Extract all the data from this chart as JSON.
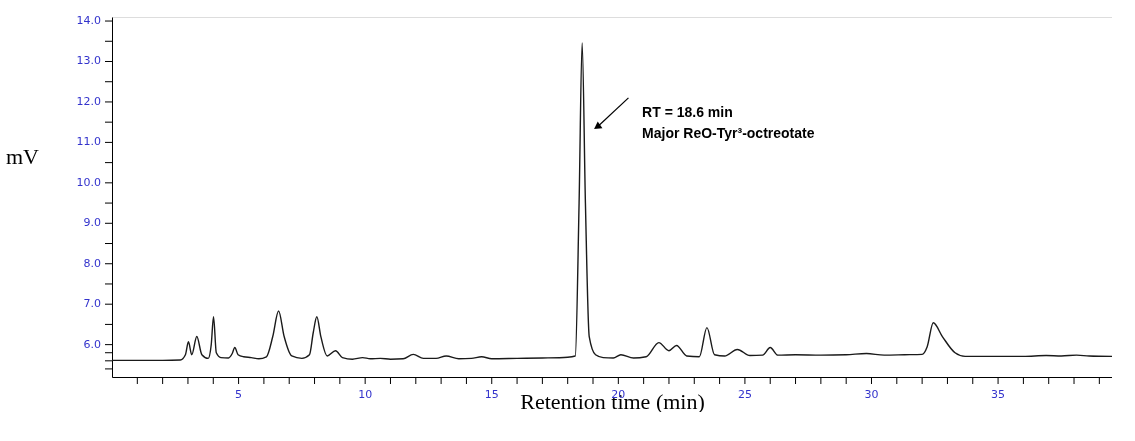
{
  "chart_data": {
    "type": "line",
    "xlabel": "Retention time (min)",
    "ylabel": "mV",
    "annotations": [
      {
        "text": "RT = 18.6 min\nMajor ReO-Tyr³-octreotate",
        "x": 19.2,
        "y": 11.4
      }
    ],
    "series": [
      {
        "color": "#1a1a1a",
        "x": [
          0.0,
          1.0,
          2.0,
          2.7,
          2.9,
          3.02,
          3.15,
          3.35,
          3.55,
          3.8,
          3.92,
          4.01,
          4.12,
          4.3,
          4.6,
          4.75,
          4.85,
          4.98,
          5.2,
          5.5,
          5.8,
          6.1,
          6.35,
          6.58,
          6.8,
          7.1,
          7.5,
          7.8,
          7.95,
          8.09,
          8.25,
          8.5,
          8.83,
          9.1,
          9.5,
          9.9,
          10.2,
          10.6,
          11.0,
          11.5,
          11.9,
          12.3,
          12.8,
          13.2,
          13.7,
          14.2,
          14.6,
          15.0,
          16.0,
          17.0,
          18.0,
          18.3,
          18.45,
          18.57,
          18.7,
          18.85,
          19.1,
          19.4,
          19.8,
          20.1,
          20.6,
          21.1,
          21.6,
          22.0,
          22.3,
          22.7,
          23.2,
          23.5,
          23.8,
          24.2,
          24.7,
          25.2,
          25.7,
          26.0,
          26.3,
          27.0,
          28.0,
          29.0,
          29.8,
          30.5,
          31.3,
          32.0,
          32.2,
          32.44,
          32.8,
          33.3,
          33.7,
          34.5,
          36.0,
          36.9,
          37.5,
          38.1,
          38.6,
          39.5
        ],
        "values": [
          5.61,
          5.61,
          5.61,
          5.62,
          5.75,
          6.07,
          5.75,
          6.2,
          5.75,
          5.66,
          6.0,
          6.69,
          5.8,
          5.68,
          5.67,
          5.78,
          5.93,
          5.75,
          5.7,
          5.68,
          5.65,
          5.7,
          6.2,
          6.83,
          6.2,
          5.72,
          5.66,
          5.75,
          6.3,
          6.69,
          6.2,
          5.72,
          5.85,
          5.68,
          5.64,
          5.68,
          5.65,
          5.66,
          5.64,
          5.65,
          5.76,
          5.66,
          5.66,
          5.72,
          5.65,
          5.66,
          5.7,
          5.65,
          5.66,
          5.67,
          5.69,
          5.72,
          9.5,
          13.46,
          9.5,
          6.2,
          5.75,
          5.68,
          5.67,
          5.75,
          5.67,
          5.7,
          6.05,
          5.85,
          5.98,
          5.72,
          5.7,
          6.42,
          5.75,
          5.72,
          5.88,
          5.73,
          5.74,
          5.93,
          5.74,
          5.75,
          5.74,
          5.75,
          5.78,
          5.74,
          5.75,
          5.76,
          5.95,
          6.54,
          6.2,
          5.8,
          5.71,
          5.71,
          5.71,
          5.73,
          5.72,
          5.74,
          5.72,
          5.71
        ]
      }
    ],
    "xlim": [
      0,
      39.5
    ],
    "ylim": [
      5.2,
      14.1
    ],
    "xticks": [
      {
        "value": 1,
        "label": null
      },
      {
        "value": 2,
        "label": null
      },
      {
        "value": 3,
        "label": null
      },
      {
        "value": 4,
        "label": null
      },
      5,
      {
        "value": 6,
        "label": null
      },
      {
        "value": 7,
        "label": null
      },
      {
        "value": 8,
        "label": null
      },
      {
        "value": 9,
        "label": null
      },
      10,
      {
        "value": 11,
        "label": null
      },
      {
        "value": 12,
        "label": null
      },
      {
        "value": 13,
        "label": null
      },
      {
        "value": 14,
        "label": null
      },
      15,
      {
        "value": 16,
        "label": null
      },
      {
        "value": 17,
        "label": null
      },
      {
        "value": 18,
        "label": null
      },
      {
        "value": 19,
        "label": null
      },
      20,
      {
        "value": 21,
        "label": null
      },
      {
        "value": 22,
        "label": null
      },
      {
        "value": 23,
        "label": null
      },
      {
        "value": 24,
        "label": null
      },
      25,
      {
        "value": 26,
        "label": null
      },
      {
        "value": 27,
        "label": null
      },
      {
        "value": 28,
        "label": null
      },
      {
        "value": 29,
        "label": null
      },
      30,
      {
        "value": 31,
        "label": null
      },
      {
        "value": 32,
        "label": null
      },
      {
        "value": 33,
        "label": null
      },
      {
        "value": 34,
        "label": null
      },
      35,
      {
        "value": 36,
        "label": null
      },
      {
        "value": 37,
        "label": null
      },
      {
        "value": 38,
        "label": null
      },
      {
        "value": 39,
        "label": null
      }
    ],
    "yticks": [
      {
        "value": 5.4,
        "label": null
      },
      {
        "value": 5.6,
        "label": null
      },
      {
        "value": 5.8,
        "label": null
      },
      {
        "value": 6,
        "label": "6.0"
      },
      {
        "value": 6.5,
        "label": null
      },
      {
        "value": 7,
        "label": "7.0"
      },
      {
        "value": 7.5,
        "label": null
      },
      {
        "value": 8,
        "label": "8.0"
      },
      {
        "value": 8.5,
        "label": null
      },
      {
        "value": 9,
        "label": "9.0"
      },
      {
        "value": 9.5,
        "label": null
      },
      {
        "value": 10,
        "label": "10.0"
      },
      {
        "value": 10.5,
        "label": null
      },
      {
        "value": 11,
        "label": "11.0"
      },
      {
        "value": 11.5,
        "label": null
      },
      {
        "value": 12,
        "label": "12.0"
      },
      {
        "value": 12.5,
        "label": null
      },
      {
        "value": 13,
        "label": "13.0"
      },
      {
        "value": 13.5,
        "label": null
      },
      {
        "value": 14,
        "label": "14.0"
      }
    ],
    "grid": false,
    "marker": "none",
    "line_style": "solid"
  }
}
